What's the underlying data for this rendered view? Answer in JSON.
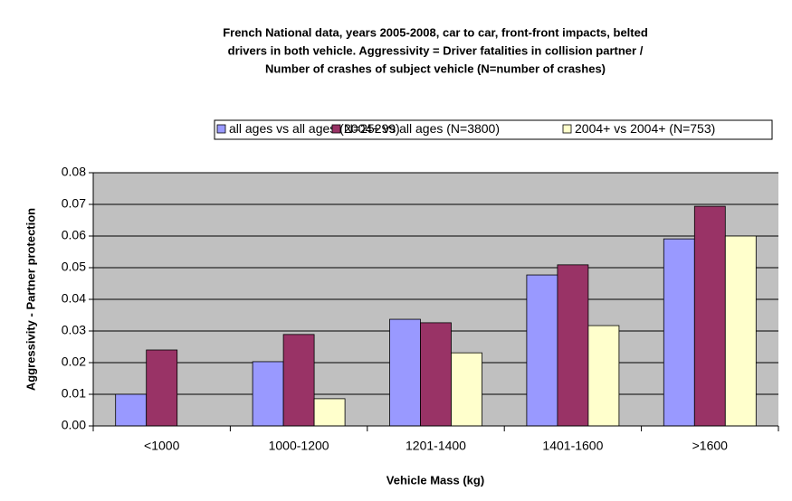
{
  "chart_data": {
    "type": "bar",
    "title": [
      "French National data, years 2005-2008, car to car, front-front impacts, belted",
      "drivers in both vehicle. Aggressivity = Driver fatalities in collision partner /",
      "Number of crashes of subject vehicle (N=number of crashes)"
    ],
    "x_label": "Vehicle Mass (kg)",
    "y_label": "Aggressivity - Partner protection",
    "categories": [
      "<1000",
      "1000-1200",
      "1201-1400",
      "1401-1600",
      ">1600"
    ],
    "series": [
      {
        "name": "all ages vs all ages (N=25299)",
        "color": "#9999ff",
        "values": [
          0.01,
          0.0203,
          0.0337,
          0.0477,
          0.0591
        ]
      },
      {
        "name": "2004+ vs all ages (N=3800)",
        "color": "#993366",
        "values": [
          0.024,
          0.0289,
          0.0326,
          0.0509,
          0.0694
        ]
      },
      {
        "name": "2004+ vs 2004+ (N=753)",
        "color": "#ffffcc",
        "values": [
          null,
          0.0086,
          0.0231,
          0.0317,
          0.06
        ]
      }
    ],
    "ylim": [
      0,
      0.08
    ],
    "yticks": [
      {
        "value": 0,
        "label": "0.00"
      },
      0.01,
      0.02,
      0.03,
      0.04,
      0.05,
      0.06,
      0.07,
      0.08
    ],
    "grid": true,
    "legend": "top"
  }
}
